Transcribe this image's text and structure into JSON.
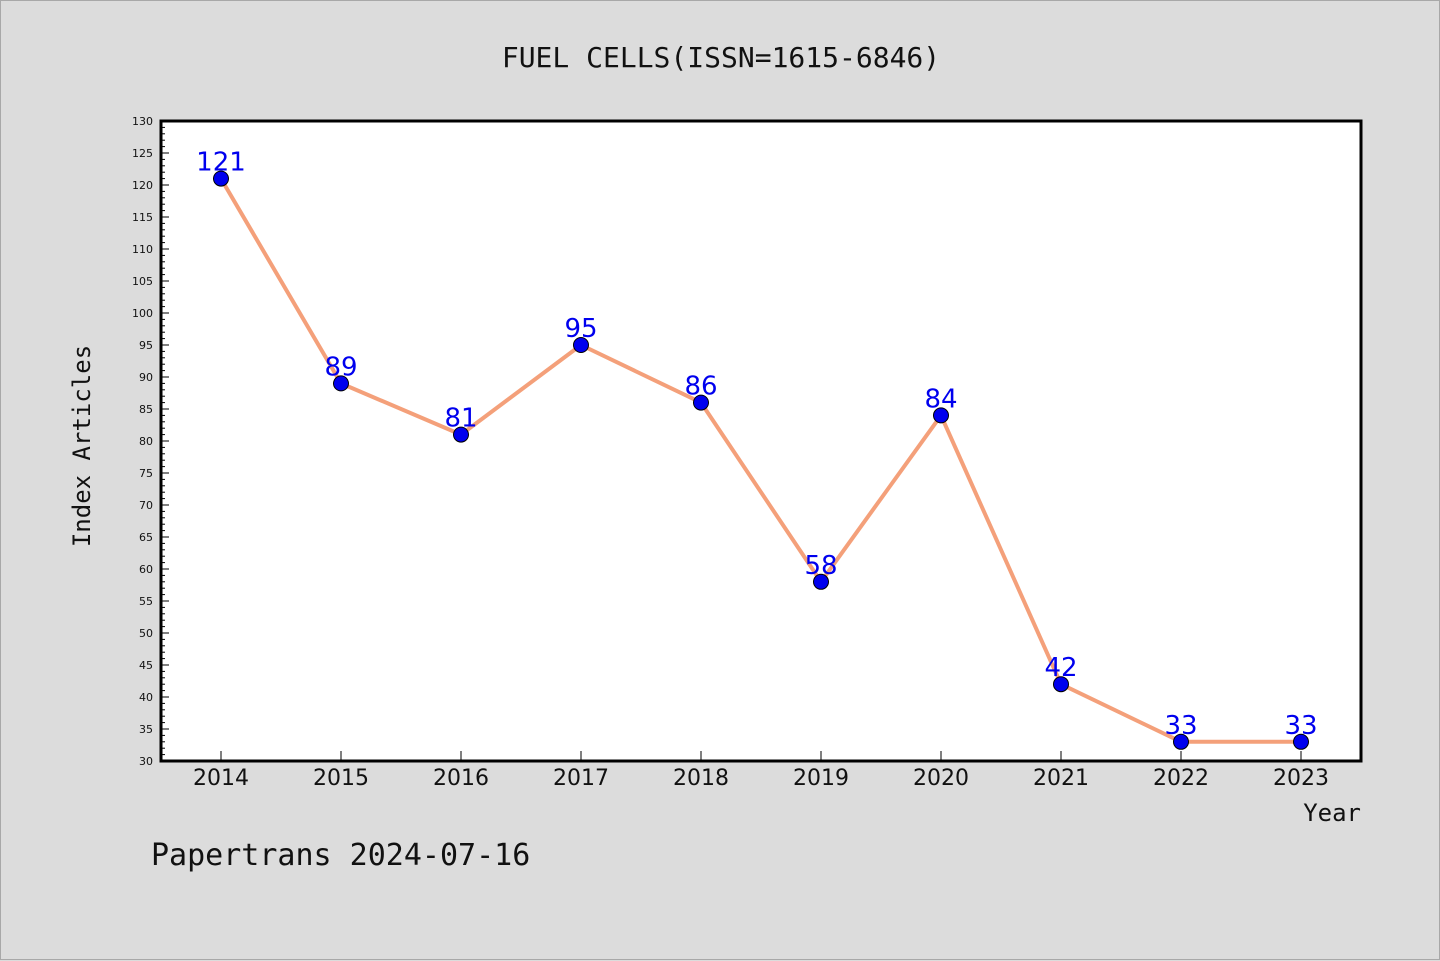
{
  "chart_data": {
    "type": "line",
    "title": "FUEL CELLS(ISSN=1615-6846)",
    "xlabel": "Year",
    "ylabel": "Index Articles",
    "categories": [
      "2014",
      "2015",
      "2016",
      "2017",
      "2018",
      "2019",
      "2020",
      "2021",
      "2022",
      "2023"
    ],
    "series": [
      {
        "values": [
          121,
          89,
          81,
          95,
          86,
          58,
          84,
          42,
          33,
          33
        ]
      }
    ],
    "ylim": [
      30,
      130
    ],
    "ytick_step": 5,
    "ytick_labels": [
      "30",
      "35",
      "40",
      "45",
      "50",
      "55",
      "60",
      "65",
      "70",
      "75",
      "80",
      "85",
      "90",
      "95",
      "100",
      "105",
      "110",
      "115",
      "120",
      "125",
      "130"
    ],
    "data_labels": [
      "121",
      "89",
      "81",
      "95",
      "86",
      "58",
      "84",
      "42",
      "33",
      "33"
    ],
    "grid": false,
    "legend": "none",
    "colors": {
      "line": "#f4a07a",
      "marker": "#0000ee",
      "label": "#0000ee",
      "background": "#dcdcdc",
      "plot_area": "#ffffff"
    }
  },
  "footer": "Papertrans 2024-07-16"
}
